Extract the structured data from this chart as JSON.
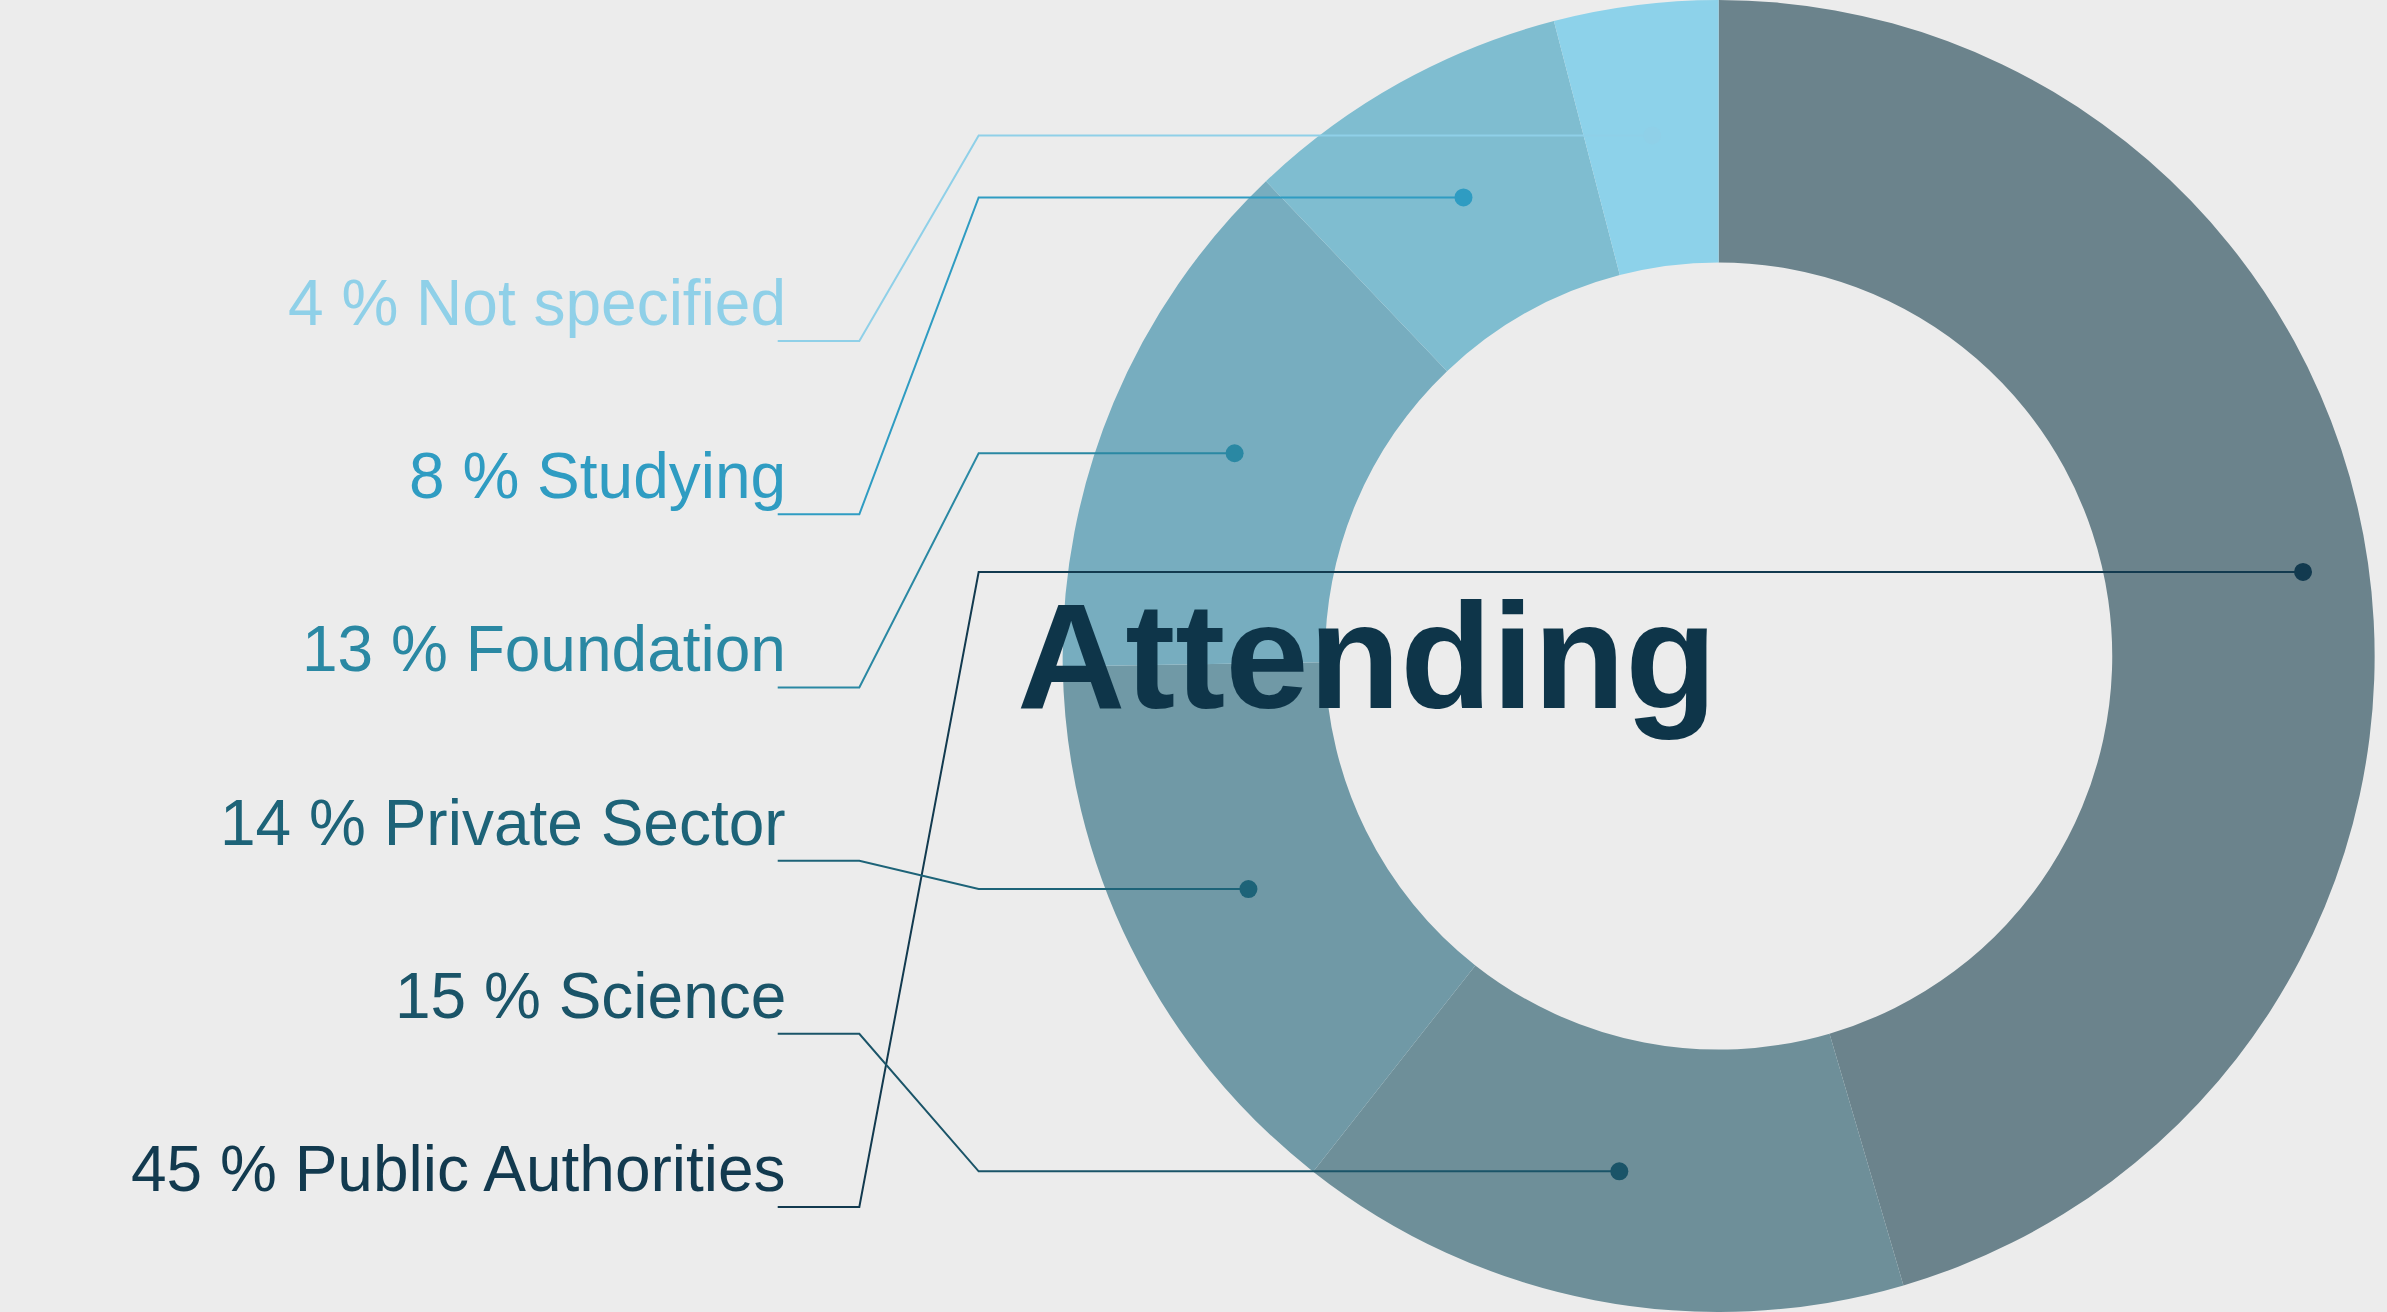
{
  "chart_data": {
    "type": "donut",
    "legend": false,
    "categories": [
      "Public Authorities",
      "Science",
      "Private Sector",
      "Foundation",
      "Studying",
      "Not specified"
    ],
    "values": [
      45,
      15,
      14,
      13,
      8,
      4
    ],
    "value_labels": [
      "45 %",
      "15 %",
      "14 %",
      "13 %",
      "8 %",
      "4 %"
    ],
    "colors": [
      "#6b838c",
      "#6e8f99",
      "#7099a6",
      "#77adbf",
      "#7fbdd0",
      "#8dd2ea"
    ],
    "annotations": [
      "Attending"
    ]
  }
}
